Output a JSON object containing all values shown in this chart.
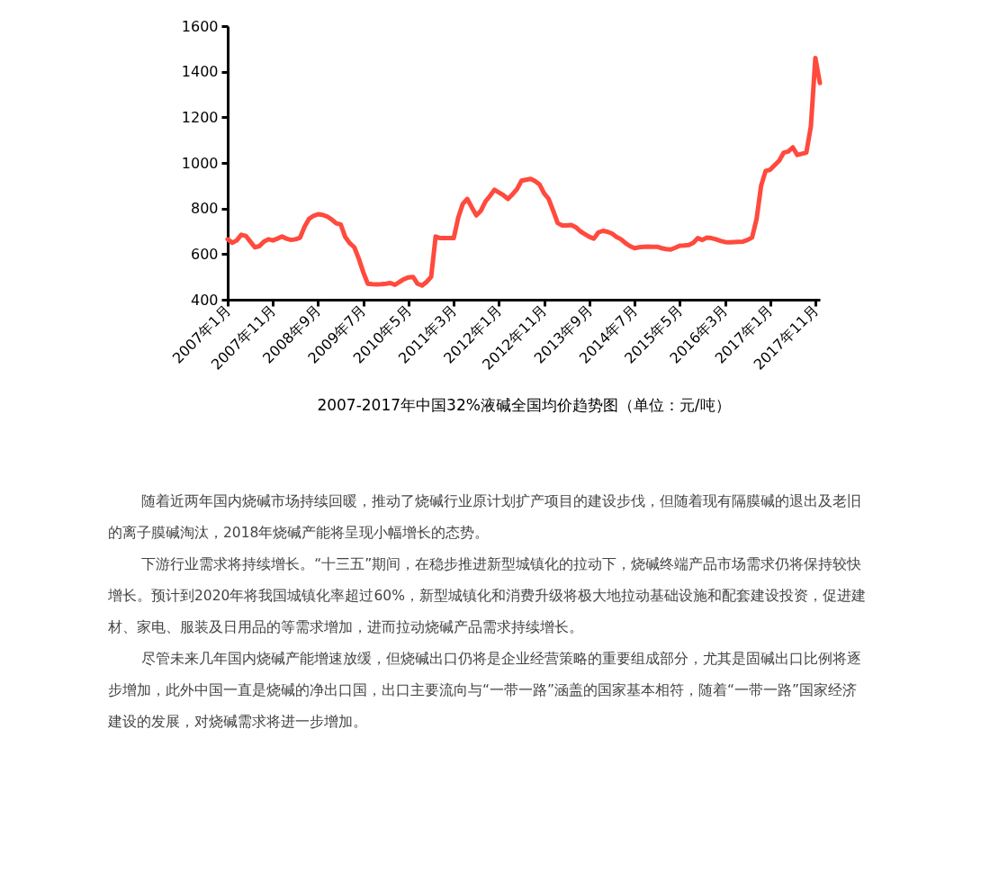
{
  "chart_data": {
    "type": "line",
    "title": "2007-2017年中国32%液碱全国均价趋势图（单位：元/吨）",
    "categories": [
      "2007年1月",
      null,
      null,
      null,
      null,
      null,
      null,
      null,
      null,
      null,
      "2007年11月",
      null,
      null,
      null,
      null,
      null,
      null,
      null,
      null,
      null,
      "2008年9月",
      null,
      null,
      null,
      null,
      null,
      null,
      null,
      null,
      null,
      "2009年7月",
      null,
      null,
      null,
      null,
      null,
      null,
      null,
      null,
      null,
      "2010年5月",
      null,
      null,
      null,
      null,
      null,
      null,
      null,
      null,
      null,
      "2011年3月",
      null,
      null,
      null,
      null,
      null,
      null,
      null,
      null,
      null,
      "2012年1月",
      null,
      null,
      null,
      null,
      null,
      null,
      null,
      null,
      null,
      "2012年11月",
      null,
      null,
      null,
      null,
      null,
      null,
      null,
      null,
      null,
      "2013年9月",
      null,
      null,
      null,
      null,
      null,
      null,
      null,
      null,
      null,
      "2014年7月",
      null,
      null,
      null,
      null,
      null,
      null,
      null,
      null,
      null,
      "2015年5月",
      null,
      null,
      null,
      null,
      null,
      null,
      null,
      null,
      null,
      "2016年3月",
      null,
      null,
      null,
      null,
      null,
      null,
      null,
      null,
      null,
      "2017年1月",
      null,
      null,
      null,
      null,
      null,
      null,
      null,
      null,
      null,
      "2017年11月",
      null
    ],
    "series": [
      {
        "color": "#ff4a3d",
        "values": [
          665,
          650,
          660,
          685,
          680,
          655,
          630,
          635,
          655,
          665,
          660,
          668,
          677,
          668,
          662,
          665,
          672,
          720,
          755,
          768,
          775,
          772,
          765,
          752,
          735,
          730,
          675,
          648,
          630,
          580,
          520,
          470,
          468,
          467,
          468,
          470,
          473,
          465,
          478,
          490,
          498,
          500,
          470,
          462,
          478,
          500,
          677,
          670,
          670,
          670,
          670,
          760,
          820,
          842,
          805,
          770,
          790,
          830,
          855,
          882,
          870,
          858,
          842,
          862,
          885,
          922,
          926,
          930,
          920,
          905,
          866,
          842,
          790,
          736,
          726,
          726,
          728,
          718,
          700,
          688,
          676,
          668,
          695,
          702,
          698,
          690,
          675,
          665,
          648,
          635,
          626,
          630,
          632,
          633,
          632,
          632,
          626,
          622,
          620,
          628,
          637,
          638,
          640,
          650,
          670,
          662,
          672,
          670,
          665,
          658,
          653,
          652,
          653,
          654,
          655,
          662,
          673,
          755,
          900,
          965,
          970,
          990,
          1010,
          1045,
          1050,
          1068,
          1035,
          1040,
          1045,
          1160,
          1460,
          1350
        ]
      }
    ],
    "ylim": [
      400,
      1600
    ],
    "yticks": [
      400,
      600,
      800,
      1000,
      1200,
      1400,
      1600
    ],
    "grid": false,
    "marker": "none",
    "line_style": "solid",
    "annotations": [
      "随着近两年国内烧碱市场持续回暖，推动了烧碱行业原计划扩产项目的建设步伐，但随着现有隔膜碱的退出及老旧的离子膜碱淘汰，2018年烧碱产能将呈现小幅增长的态势。",
      "下游行业需求将持续增长。“十三五”期间，在稳步推进新型城镇化的拉动下，烧碱终端产品市场需求仍将保持较快增长。预计到2020年将我国城镇化率超过60%，新型城镇化和消费升级将极大地拉动基础设施和配套建设投资，促进建材、家电、服装及日用品的等需求增加，进而拉动烧碱产品需求持续增长。",
      "尽管未来几年国内烧碱产能增速放缓，但烧碱出口仍将是企业经营策略的重要组成部分，尤其是固碱出口比例将逐步增加，此外中国一直是烧碱的净出口国，出口主要流向与“一带一路”涵盖的国家基本相符，随着“一带一路”国家经济建设的发展，对烧碱需求将进一步增加。"
    ]
  }
}
